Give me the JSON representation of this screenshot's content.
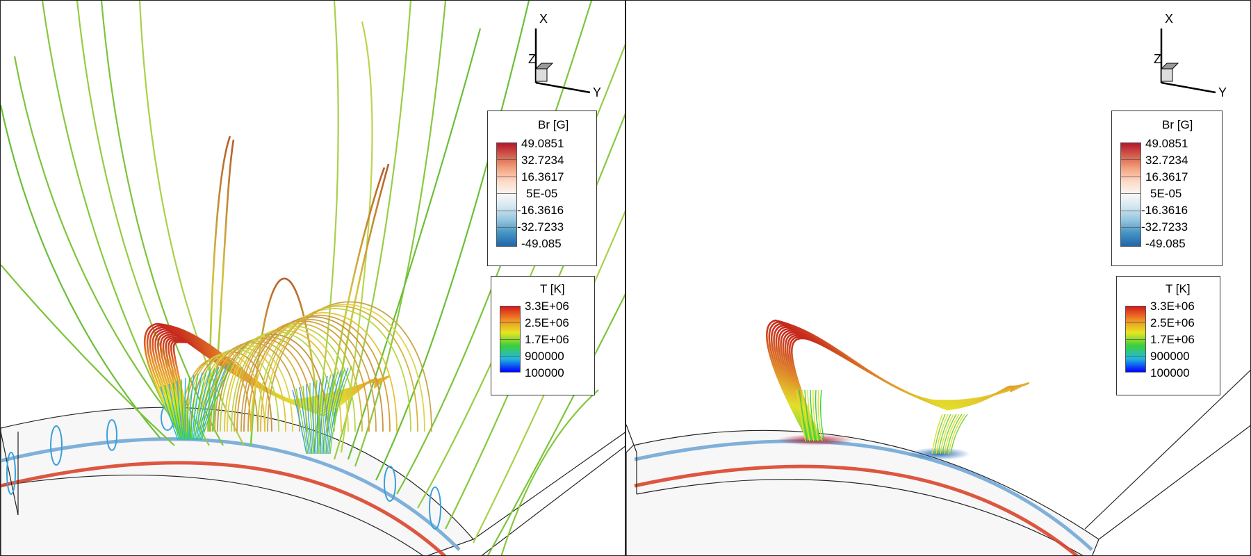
{
  "panels": [
    {
      "id": "left",
      "axes": {
        "x": "X",
        "y": "Y",
        "z": "Z"
      },
      "br_legend": {
        "title": "Br [G]",
        "labels": [
          "49.0851",
          "32.7234",
          "16.3617",
          "5E-05",
          "-16.3616",
          "-32.7233",
          "-49.085"
        ]
      },
      "t_legend": {
        "title": "T [K]",
        "labels": [
          "3.3E+06",
          "2.5E+06",
          "1.7E+06",
          "900000",
          "100000"
        ]
      }
    },
    {
      "id": "right",
      "axes": {
        "x": "X",
        "y": "Y",
        "z": "Z"
      },
      "br_legend": {
        "title": "Br [G]",
        "labels": [
          "49.0851",
          "32.7234",
          "16.3617",
          "5E-05",
          "-16.3616",
          "-32.7233",
          "-49.085"
        ]
      },
      "t_legend": {
        "title": "T [K]",
        "labels": [
          "3.3E+06",
          "2.5E+06",
          "1.7E+06",
          "900000",
          "100000"
        ]
      }
    }
  ],
  "colors": {
    "br_colormap": [
      "#b2182b",
      "#d6604d",
      "#f4a582",
      "#fddbc7",
      "#f7f7f7",
      "#d1e5f0",
      "#92c5de",
      "#4393c3",
      "#2166ac"
    ],
    "t_colormap": [
      "#d7191c",
      "#fdae61",
      "#e6e620",
      "#3ccf3c",
      "#1fb8e0",
      "#0000ff"
    ],
    "field_line_open": "#7cc43c",
    "field_line_hot": "#c0392b"
  }
}
